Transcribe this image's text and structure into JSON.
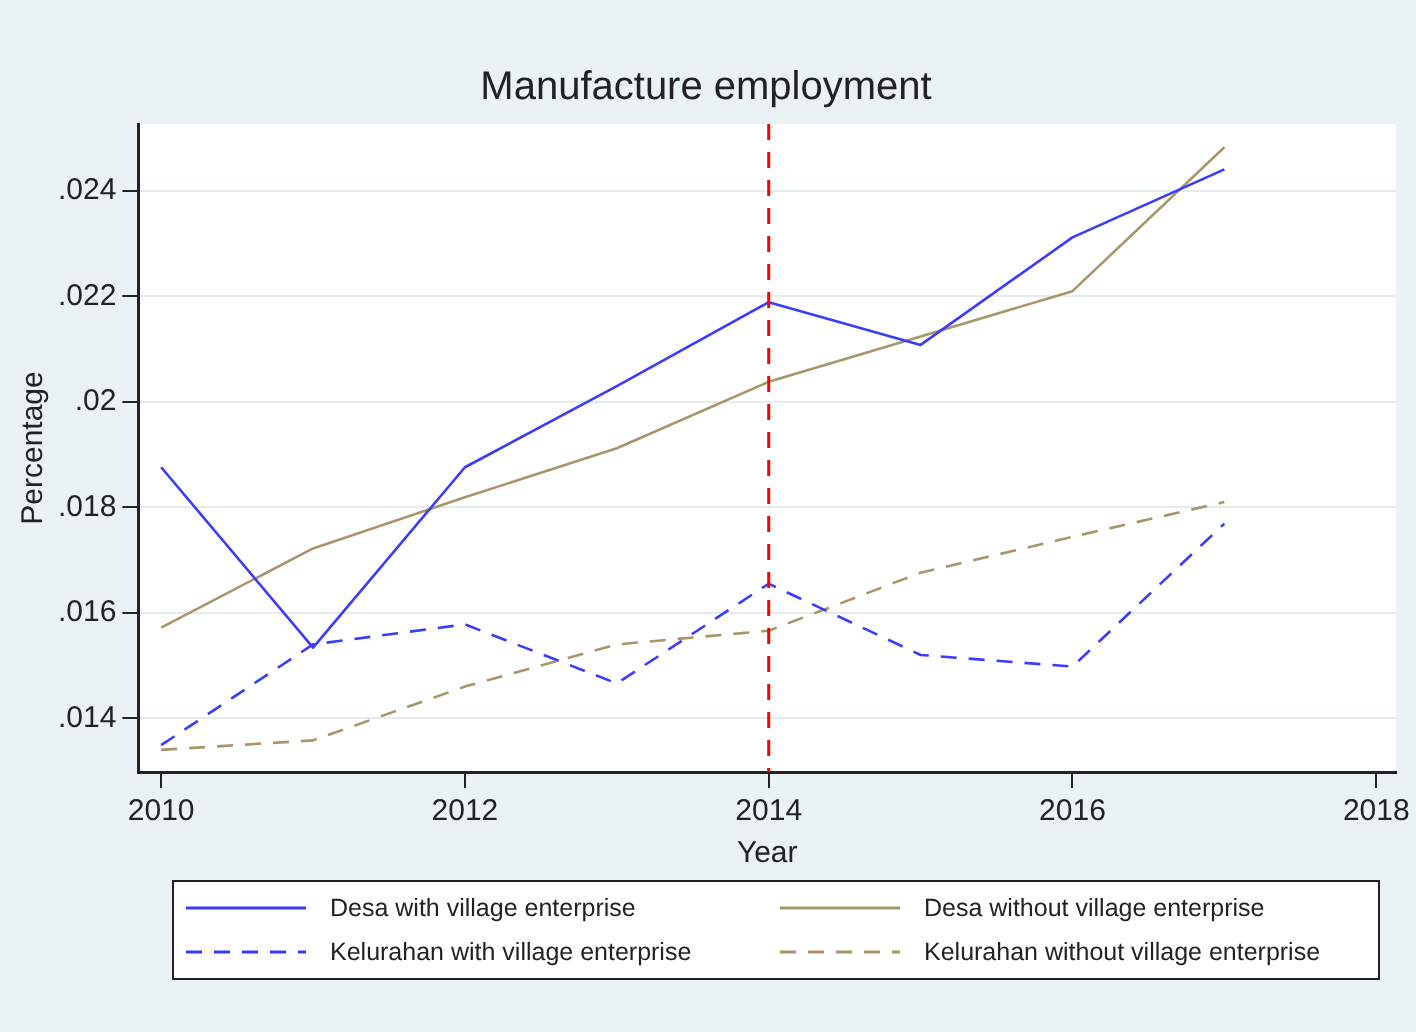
{
  "chart_data": {
    "type": "line",
    "title": "Manufacture employment",
    "xlabel": "Year",
    "ylabel": "Percentage",
    "x": [
      2010,
      2011,
      2012,
      2013,
      2014,
      2015,
      2016,
      2017
    ],
    "series": [
      {
        "name": "Desa with village enterprise",
        "color": "#3b3bff",
        "line_style": "solid",
        "values": [
          0.01876,
          0.01534,
          0.01876,
          0.0203,
          0.02189,
          0.02108,
          0.02312,
          0.02441
        ]
      },
      {
        "name": "Desa without village enterprise",
        "color": "#a8966b",
        "line_style": "solid",
        "values": [
          0.01572,
          0.01722,
          0.01819,
          0.01912,
          0.02038,
          0.02124,
          0.0221,
          0.02483
        ]
      },
      {
        "name": "Kelurahan with village enterprise",
        "color": "#3b3bff",
        "line_style": "dashed",
        "values": [
          0.01349,
          0.0154,
          0.01578,
          0.01466,
          0.01655,
          0.0152,
          0.01498,
          0.01769
        ]
      },
      {
        "name": "Kelurahan without village enterprise",
        "color": "#a8966b",
        "line_style": "dashed",
        "values": [
          0.0134,
          0.01358,
          0.0146,
          0.0154,
          0.01566,
          0.01676,
          0.01744,
          0.0181
        ]
      }
    ],
    "xlim": [
      2009.85,
      2018.13
    ],
    "xticks": [
      2010,
      2012,
      2014,
      2016,
      2018
    ],
    "ylim": [
      0.01298,
      0.02527
    ],
    "yticks": [
      {
        "value": 0.014,
        "label": ".014"
      },
      {
        "value": 0.016,
        "label": ".016"
      },
      {
        "value": 0.018,
        "label": ".018"
      },
      {
        "value": 0.02,
        "label": ".02"
      },
      {
        "value": 0.022,
        "label": ".022"
      },
      {
        "value": 0.024,
        "label": ".024"
      }
    ],
    "ref_lines": [
      {
        "axis": "x",
        "value": 2014,
        "color": "#ff0000",
        "line_style": "dashed"
      }
    ],
    "grid": "y",
    "legend": "bottom",
    "marker": "none"
  }
}
